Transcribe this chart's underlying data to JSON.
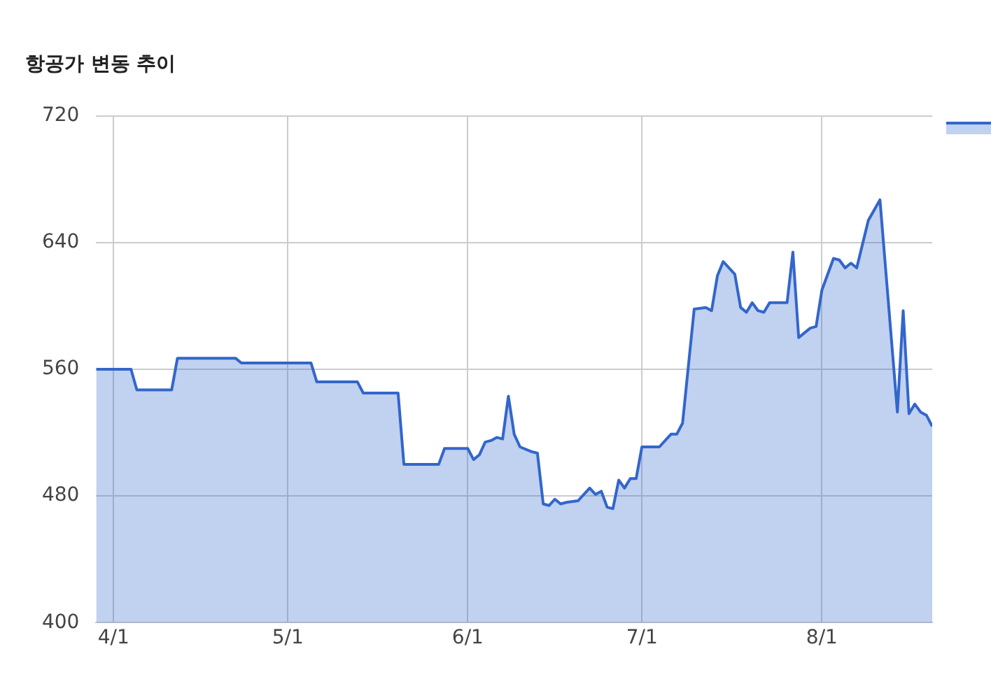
{
  "chart_data": {
    "type": "area",
    "title": "항공가 변동 추이",
    "x": [
      "--03-29",
      "--04-04",
      "--04-05",
      "--04-11",
      "--04-12",
      "--04-22",
      "--04-23",
      "--05-05",
      "--05-06",
      "--05-13",
      "--05-14",
      "--05-20",
      "--05-21",
      "--05-27",
      "--05-28",
      "--06-01",
      "--06-02",
      "--06-03",
      "--06-04",
      "--06-05",
      "--06-06",
      "--06-07",
      "--06-08",
      "--06-09",
      "--06-10",
      "--06-12",
      "--06-13",
      "--06-14",
      "--06-15",
      "--06-16",
      "--06-17",
      "--06-18",
      "--06-20",
      "--06-21",
      "--06-22",
      "--06-23",
      "--06-24",
      "--06-25",
      "--06-26",
      "--06-27",
      "--06-28",
      "--06-29",
      "--06-30",
      "--07-01",
      "--07-04",
      "--07-06",
      "--07-07",
      "--07-08",
      "--07-10",
      "--07-12",
      "--07-13",
      "--07-14",
      "--07-15",
      "--07-17",
      "--07-18",
      "--07-19",
      "--07-20",
      "--07-21",
      "--07-22",
      "--07-23",
      "--07-24",
      "--07-26",
      "--07-27",
      "--07-28",
      "--07-29",
      "--07-30",
      "--07-31",
      "--08-01",
      "--08-03",
      "--08-04",
      "--08-05",
      "--08-06",
      "--08-07",
      "--08-09",
      "--08-11",
      "--08-14",
      "--08-15",
      "--08-16",
      "--08-17",
      "--08-18",
      "--08-19",
      "--08-20"
    ],
    "series": [
      {
        "color": "#3366cc",
        "values": [
          560,
          560,
          547,
          547,
          567,
          567,
          564,
          564,
          552,
          552,
          545,
          545,
          500,
          500,
          510,
          510,
          503,
          506,
          514,
          515,
          517,
          516,
          543,
          519,
          511,
          508,
          507,
          475,
          474,
          478,
          475,
          476,
          477,
          481,
          485,
          481,
          483,
          473,
          472,
          490,
          485,
          491,
          491,
          511,
          511,
          519,
          519,
          526,
          598,
          599,
          597,
          619,
          628,
          620,
          599,
          596,
          602,
          597,
          596,
          602,
          602,
          602,
          634,
          580,
          583,
          586,
          587,
          610,
          630,
          629,
          624,
          627,
          624,
          654,
          667,
          533,
          597,
          532,
          538,
          533,
          531,
          524
        ]
      }
    ],
    "xlim": [
      "--03-29",
      "--08-20"
    ],
    "xticks": [
      {
        "value": "--04-01",
        "label": "4/1"
      },
      {
        "value": "--05-01",
        "label": "5/1"
      },
      {
        "value": "--06-01",
        "label": "6/1"
      },
      {
        "value": "--07-01",
        "label": "7/1"
      },
      {
        "value": "--08-01",
        "label": "8/1"
      }
    ],
    "ylim": [
      400,
      720
    ],
    "yticks": [
      400,
      480,
      560,
      640,
      720
    ],
    "grid": true
  }
}
